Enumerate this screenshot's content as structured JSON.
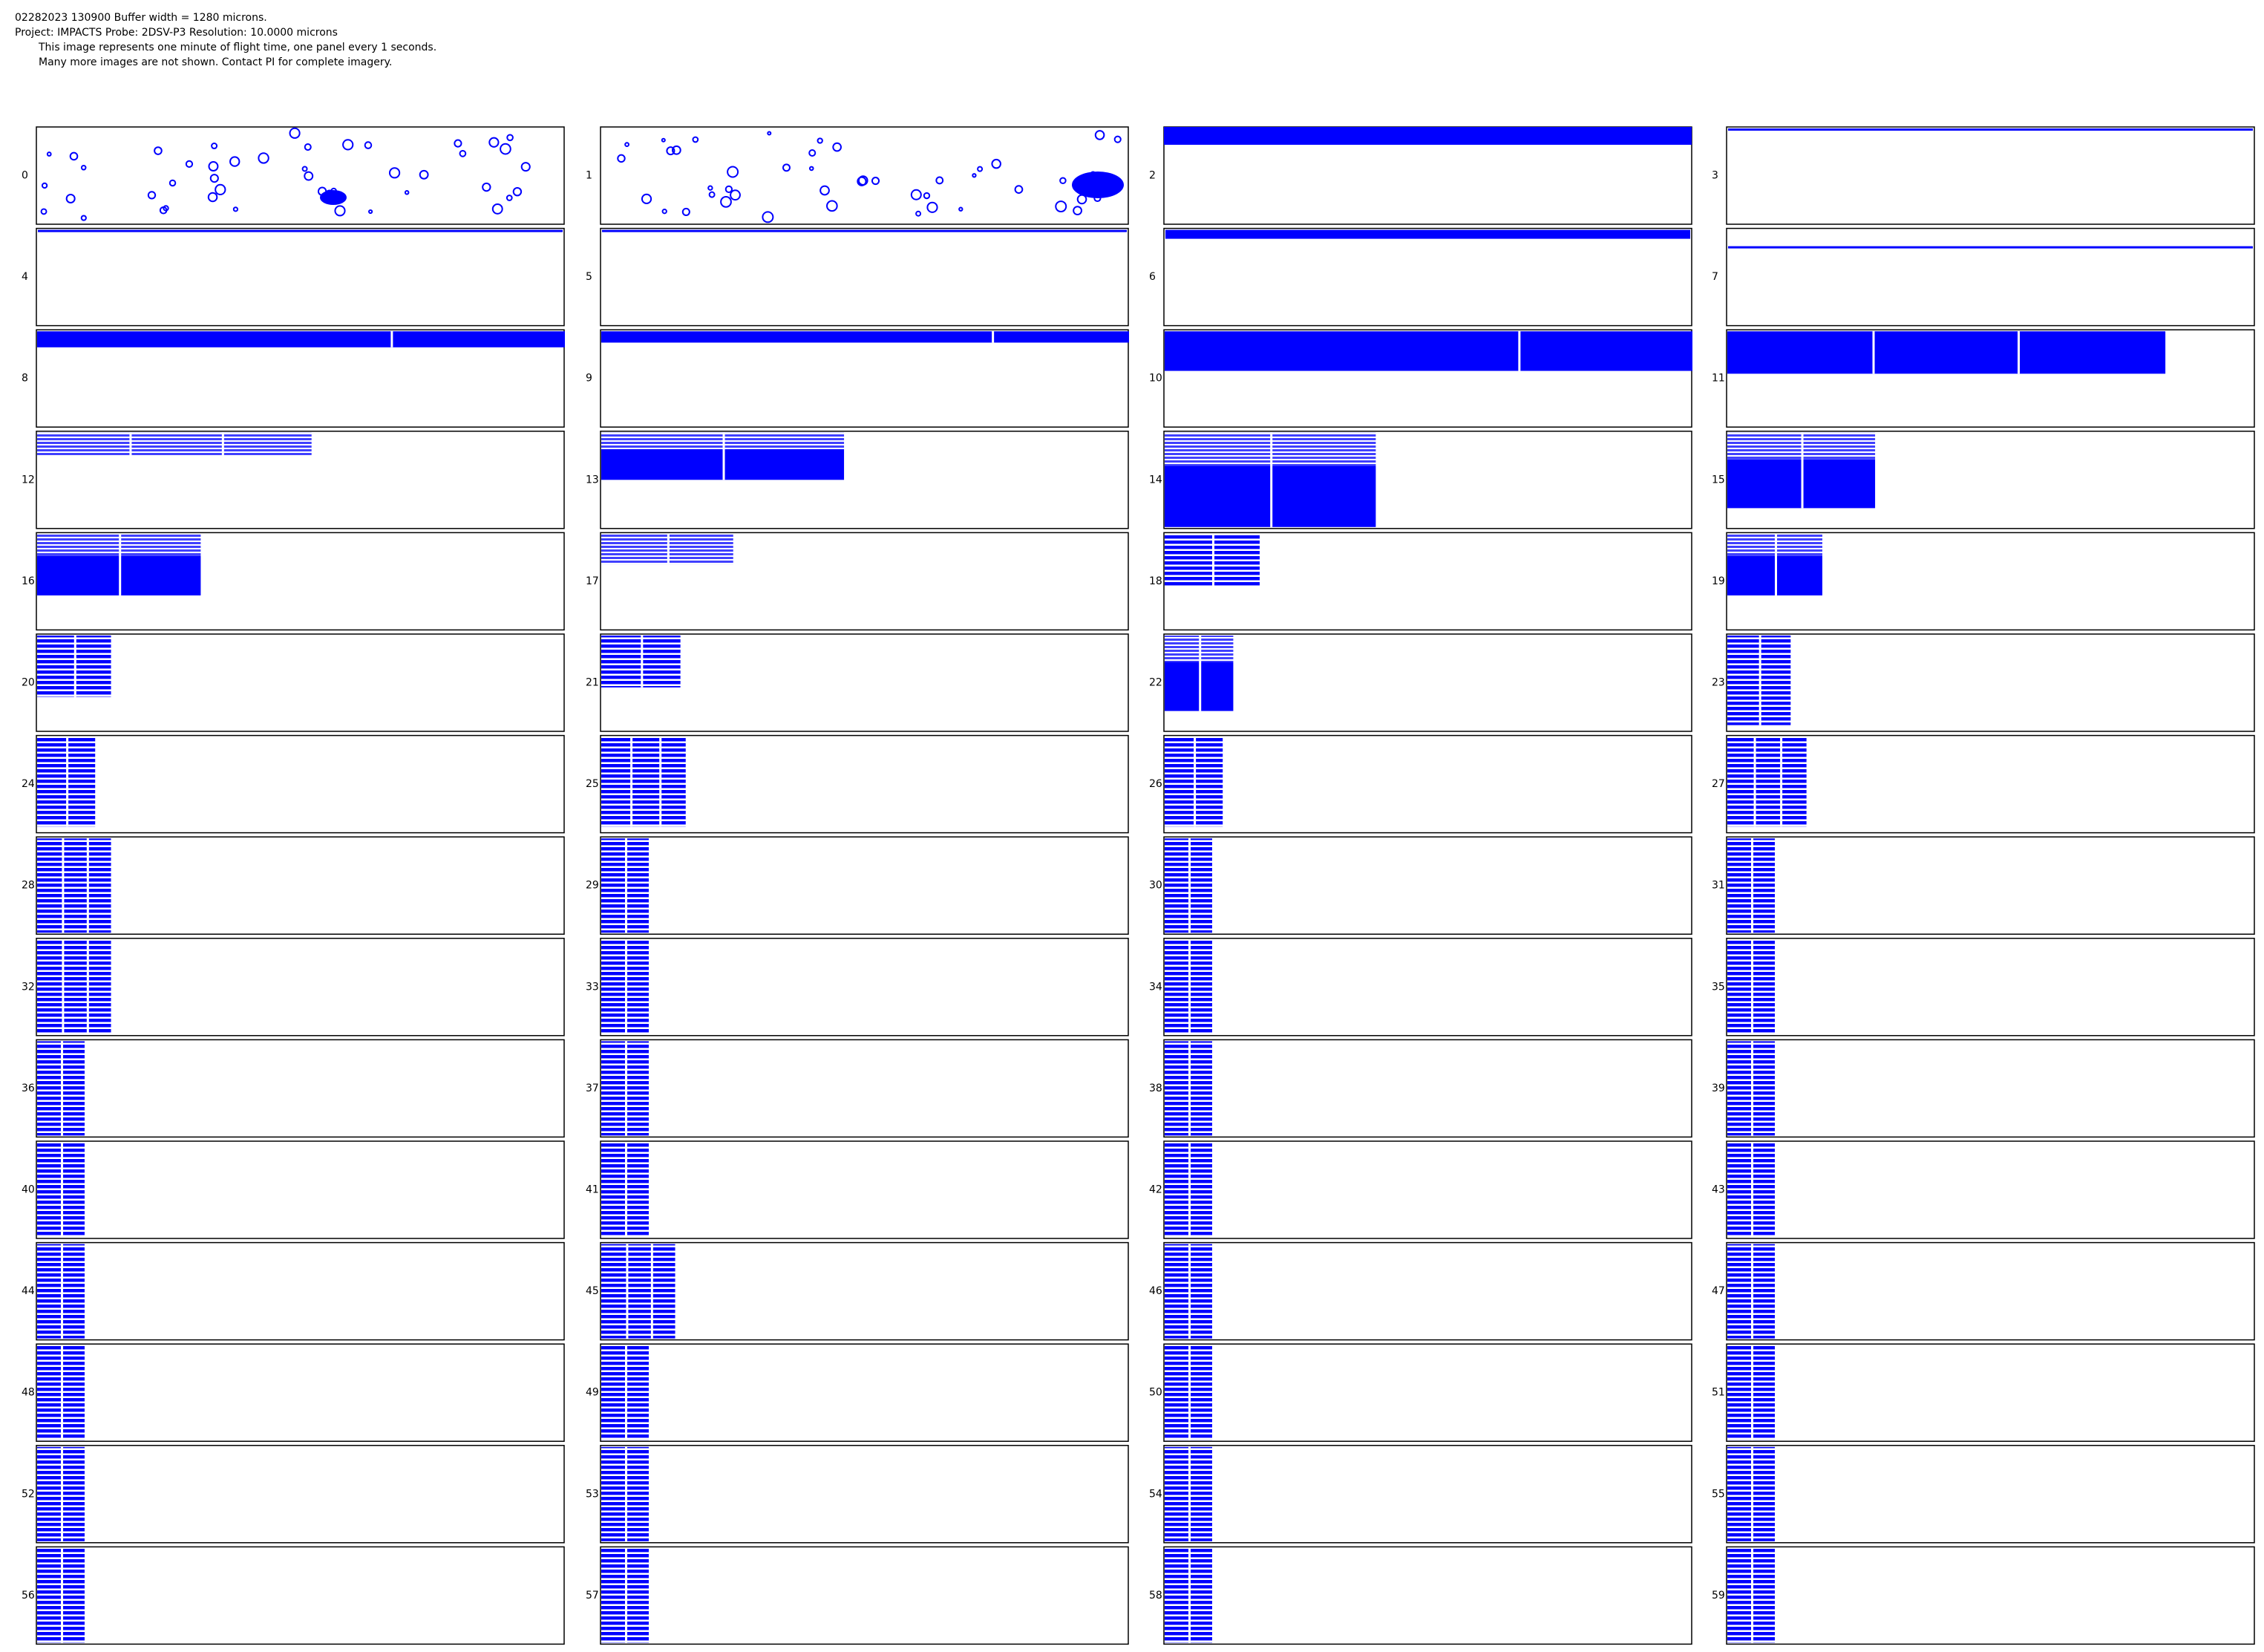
{
  "header": {
    "lines": [
      "02282023 130900  Buffer width = 1280 microns.",
      "Project: IMPACTS  Probe: 2DSV-P3    Resolution: 10.0000 microns",
      "This image represents one minute of flight time, one panel every 1 seconds.",
      "Many more images are not shown.  Contact PI for complete imagery."
    ]
  },
  "panels": {
    "labels": [
      "0",
      "1",
      "2",
      "3",
      "4",
      "5",
      "6",
      "7",
      "8",
      "9",
      "10",
      "11",
      "12",
      "13",
      "14",
      "15",
      "16",
      "17",
      "18",
      "19",
      "20",
      "21",
      "22",
      "23",
      "24",
      "25",
      "26",
      "27",
      "28",
      "29",
      "30",
      "31",
      "32",
      "33",
      "34",
      "35",
      "36",
      "37",
      "38",
      "39",
      "40",
      "41",
      "42",
      "43",
      "44",
      "45",
      "46",
      "47",
      "48",
      "49",
      "50",
      "51",
      "52",
      "53",
      "54",
      "55",
      "56",
      "57",
      "58",
      "59"
    ]
  }
}
